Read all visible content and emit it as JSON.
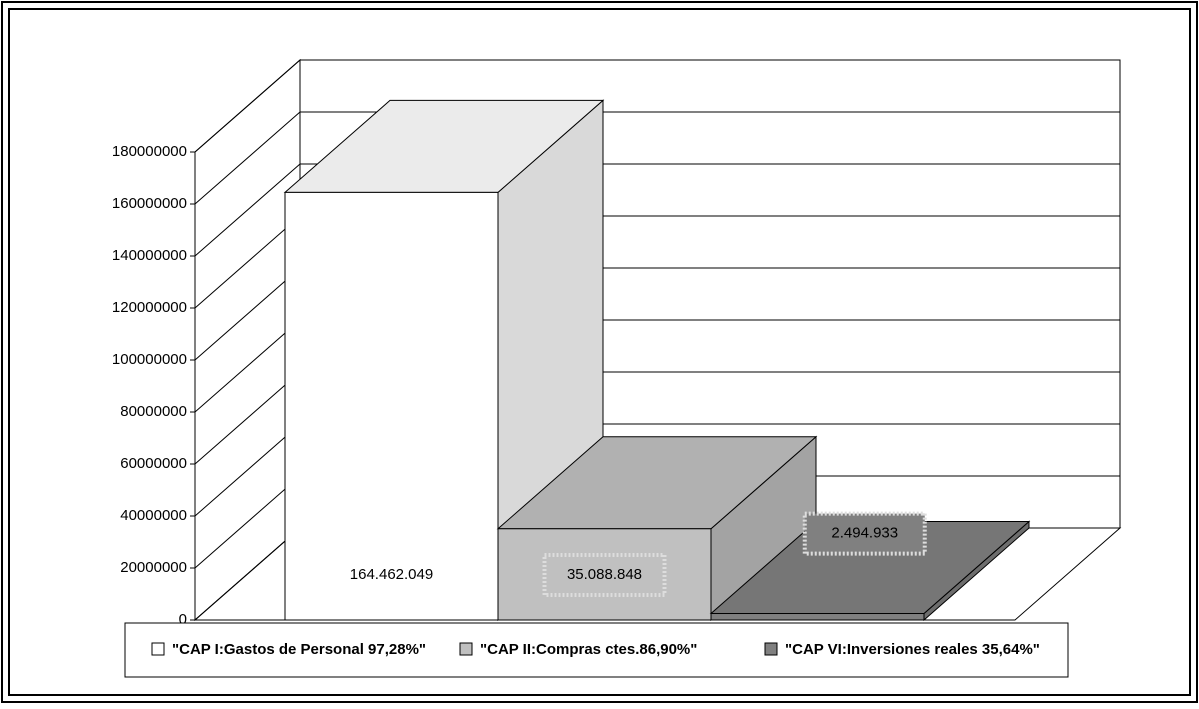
{
  "chart_data": {
    "type": "bar3d",
    "series": [
      {
        "name": "\"CAP I:Gastos de Personal 97,28%\"",
        "color": "#ffffff",
        "values": [
          164462049
        ],
        "value_labels": [
          "164.462.049"
        ]
      },
      {
        "name": "\"CAP II:Compras ctes.86,90%\"",
        "color": "#c0c0c0",
        "values": [
          35088848
        ],
        "value_labels": [
          "35.088.848"
        ]
      },
      {
        "name": "\"CAP VI:Inversiones reales 35,64%\"",
        "color": "#808080",
        "values": [
          2494933
        ],
        "value_labels": [
          "2.494.933"
        ]
      }
    ],
    "ylim": [
      0,
      180000000
    ],
    "yticks": [
      0,
      20000000,
      40000000,
      60000000,
      80000000,
      100000000,
      120000000,
      140000000,
      160000000,
      180000000
    ],
    "grid": true,
    "legend": "bottom"
  }
}
